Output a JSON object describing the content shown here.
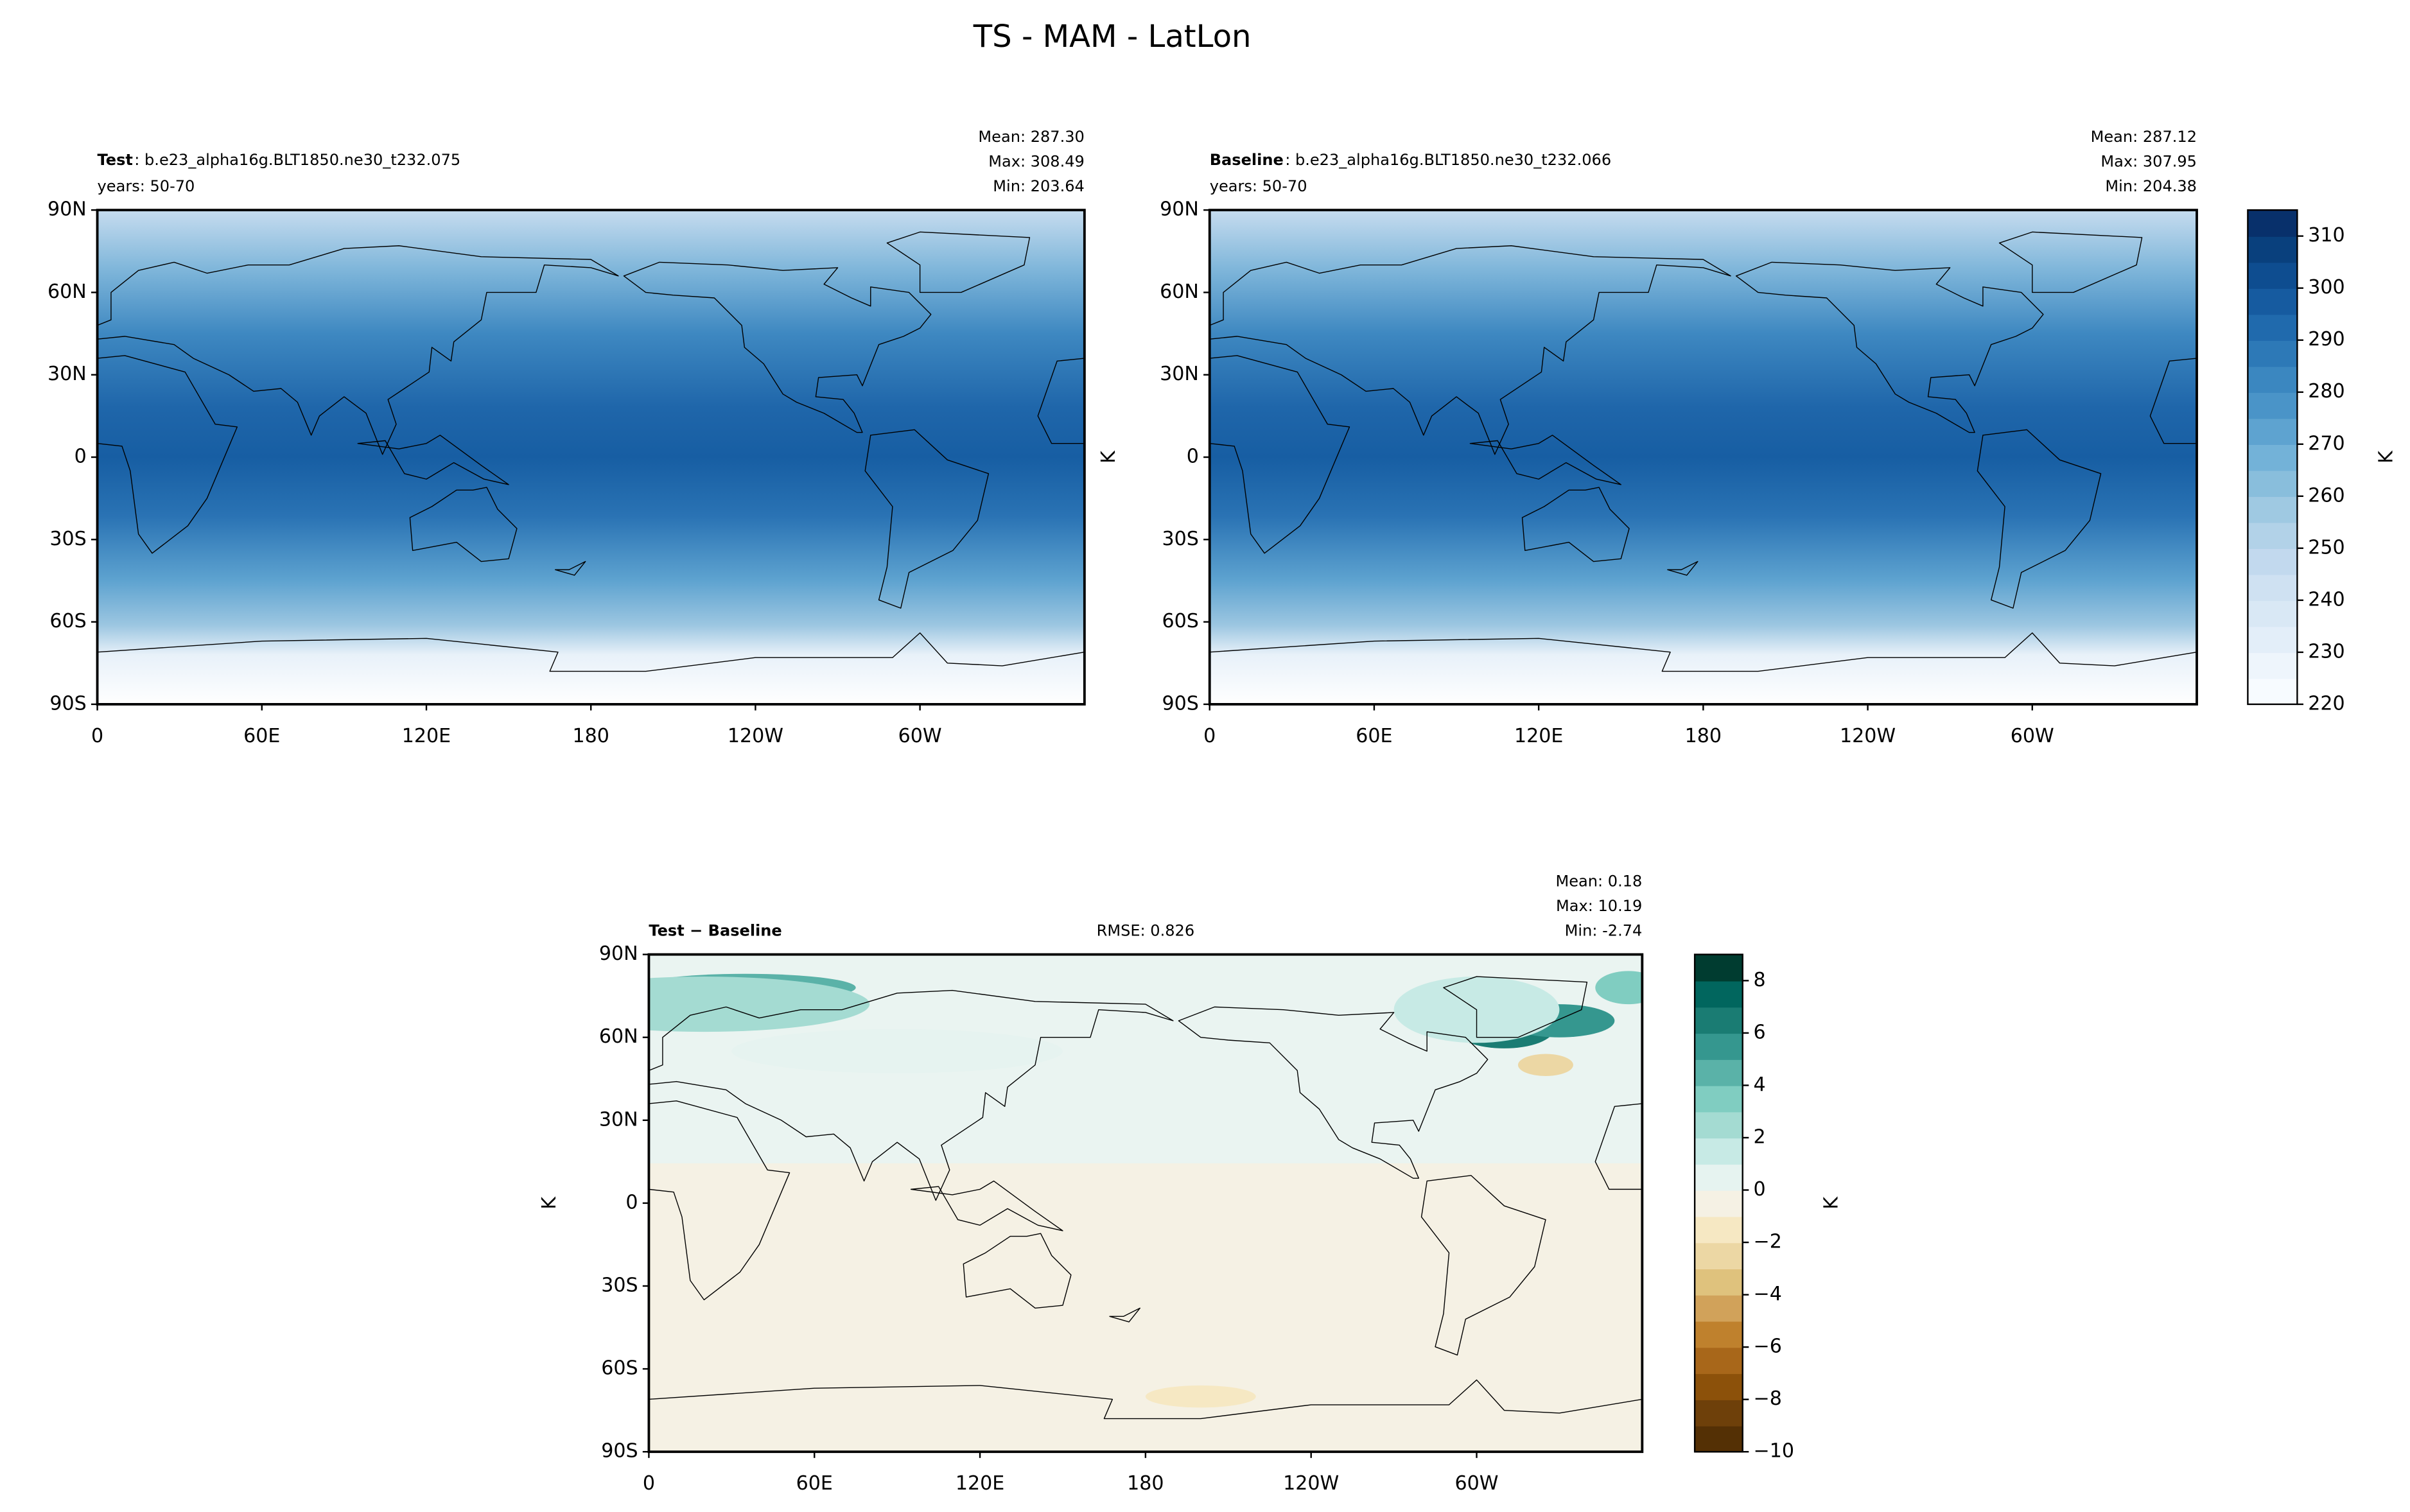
{
  "title": "TS - MAM - LatLon",
  "chart_data": [
    {
      "type": "map",
      "name": "Test",
      "case": ": b.e23_alpha16g.BLT1850.ne30_t232.075",
      "years": "years: 50-70",
      "stats": [
        "Mean: 287.30",
        "Max: 308.49",
        "Min: 203.64"
      ],
      "xlim": [
        0,
        360
      ],
      "ylim": [
        -90,
        90
      ],
      "xticks": [
        0,
        {
          "value": 60,
          "label": "60E"
        },
        {
          "value": 120,
          "label": "120E"
        },
        180,
        {
          "value": 240,
          "label": "120W"
        },
        {
          "value": 300,
          "label": "60W"
        }
      ],
      "yticks": [
        {
          "value": -90,
          "label": "90S"
        },
        {
          "value": -60,
          "label": "60S"
        },
        {
          "value": -30,
          "label": "30S"
        },
        0,
        {
          "value": 30,
          "label": "30N"
        },
        {
          "value": 60,
          "label": "60N"
        },
        {
          "value": 90,
          "label": "90N"
        }
      ]
    },
    {
      "type": "map",
      "name": "Baseline",
      "case": ": b.e23_alpha16g.BLT1850.ne30_t232.066",
      "years": "years: 50-70",
      "stats": [
        "Mean: 287.12",
        "Max: 307.95",
        "Min: 204.38"
      ],
      "ylabel": "K",
      "xlim": [
        0,
        360
      ],
      "ylim": [
        -90,
        90
      ],
      "xticks": [
        0,
        {
          "value": 60,
          "label": "60E"
        },
        {
          "value": 120,
          "label": "120E"
        },
        180,
        {
          "value": 240,
          "label": "120W"
        },
        {
          "value": 300,
          "label": "60W"
        }
      ],
      "yticks": [
        {
          "value": -90,
          "label": "90S"
        },
        {
          "value": -60,
          "label": "60S"
        },
        {
          "value": -30,
          "label": "30S"
        },
        0,
        {
          "value": 30,
          "label": "30N"
        },
        {
          "value": 60,
          "label": "60N"
        },
        {
          "value": 90,
          "label": "90N"
        }
      ],
      "colorbar": {
        "label": "K",
        "lim": [
          220,
          315
        ],
        "ticks": [
          220,
          230,
          240,
          250,
          260,
          270,
          280,
          290,
          300,
          310
        ],
        "colors": [
          "#f7fbff",
          "#eef5fc",
          "#e3eef9",
          "#d9e8f5",
          "#cfe1f2",
          "#c2d9ee",
          "#b2d2e8",
          "#9fc9e2",
          "#89bedc",
          "#73b2d8",
          "#5ea3d0",
          "#4a94c8",
          "#3b87c0",
          "#2d79b7",
          "#206aad",
          "#165ba0",
          "#0e4d90",
          "#09407d",
          "#08306b"
        ]
      }
    },
    {
      "type": "map",
      "name": "Test − Baseline",
      "rmse": "RMSE: 0.826",
      "stats": [
        "Mean:  0.18",
        "Max: 10.19",
        "Min: -2.74"
      ],
      "ylabel": "K",
      "xlim": [
        0,
        360
      ],
      "ylim": [
        -90,
        90
      ],
      "xticks": [
        0,
        {
          "value": 60,
          "label": "60E"
        },
        {
          "value": 120,
          "label": "120E"
        },
        180,
        {
          "value": 240,
          "label": "120W"
        },
        {
          "value": 300,
          "label": "60W"
        }
      ],
      "yticks": [
        {
          "value": -90,
          "label": "90S"
        },
        {
          "value": -60,
          "label": "60S"
        },
        {
          "value": -30,
          "label": "30S"
        },
        0,
        {
          "value": 30,
          "label": "30N"
        },
        {
          "value": 60,
          "label": "60N"
        },
        {
          "value": 90,
          "label": "90N"
        }
      ],
      "colorbar": {
        "label": "K",
        "lim": [
          -10,
          9
        ],
        "ticks": [
          {
            "value": -10,
            "label": "−10"
          },
          {
            "value": -8,
            "label": "−8"
          },
          {
            "value": -6,
            "label": "−6"
          },
          {
            "value": -4,
            "label": "−4"
          },
          {
            "value": -2,
            "label": "−2"
          },
          0,
          2,
          4,
          6,
          8
        ],
        "colors": [
          "#543005",
          "#6e400a",
          "#8c510a",
          "#a8671a",
          "#bf812d",
          "#d1a25a",
          "#dfc27d",
          "#ecd7a4",
          "#f6e8c3",
          "#f5f1e4",
          "#e6f3f0",
          "#c7eae5",
          "#a4dbd2",
          "#80cdc1",
          "#5ab2a8",
          "#35978f",
          "#1a7c73",
          "#01665e",
          "#003c30"
        ]
      }
    }
  ]
}
